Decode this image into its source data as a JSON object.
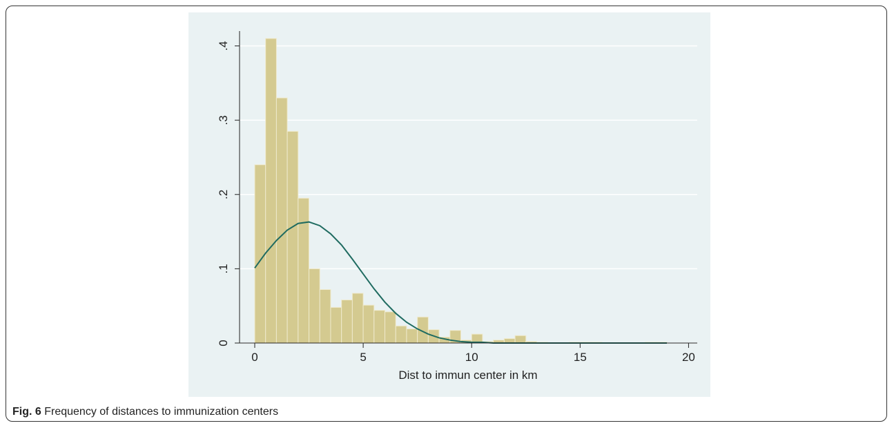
{
  "chart_data": {
    "type": "histogram",
    "x_label": "Dist to immun center in km",
    "bins": [
      0,
      0.5,
      1,
      1.5,
      2,
      2.5,
      3,
      3.5,
      4,
      4.5,
      5,
      5.5,
      6,
      6.5,
      7,
      7.5,
      8,
      8.5,
      9,
      9.5,
      10,
      10.5,
      11,
      11.5,
      12,
      12.5,
      13,
      13.5,
      14,
      14.5,
      15,
      15.5,
      16,
      16.5,
      17,
      17.5,
      18,
      18.5,
      19
    ],
    "values": [
      0.24,
      0.41,
      0.33,
      0.285,
      0.195,
      0.1,
      0.072,
      0.048,
      0.058,
      0.067,
      0.051,
      0.044,
      0.042,
      0.023,
      0.019,
      0.035,
      0.018,
      0.008,
      0.017,
      0.004,
      0.012,
      0.002,
      0.004,
      0.006,
      0.01,
      0.002,
      0.001,
      0.0005,
      0,
      0.001,
      0.001,
      0.001,
      0,
      0,
      0,
      0,
      0.001,
      0.001
    ],
    "color": "#d4ca90",
    "edge_color": "#efeacd",
    "curve": {
      "type": "line",
      "color": "#1f6b60",
      "x": [
        0,
        0.5,
        1,
        1.5,
        2,
        2.5,
        3,
        3.5,
        4,
        4.5,
        5,
        5.5,
        6,
        6.5,
        7,
        7.5,
        8,
        8.5,
        9,
        9.5,
        10,
        10.5,
        11,
        12,
        13,
        14,
        15,
        16,
        17,
        18,
        19
      ],
      "values": [
        0.101,
        0.121,
        0.138,
        0.152,
        0.161,
        0.163,
        0.158,
        0.147,
        0.132,
        0.113,
        0.093,
        0.073,
        0.055,
        0.04,
        0.028,
        0.019,
        0.012,
        0.007,
        0.004,
        0.002,
        0.001,
        0.001,
        0,
        0,
        0,
        0,
        0,
        0,
        0,
        0,
        0
      ]
    },
    "xlim": [
      -0.7,
      20.4
    ],
    "xticks": [
      0,
      5,
      10,
      15,
      20
    ],
    "ylim": [
      0,
      0.42
    ],
    "yticks": [
      0,
      {
        "value": 0.1,
        "label": ".1"
      },
      {
        "value": 0.2,
        "label": ".2"
      },
      {
        "value": 0.3,
        "label": ".3"
      },
      {
        "value": 0.4,
        "label": ".4"
      }
    ],
    "grid": true
  },
  "caption": {
    "label": "Fig. 6",
    "text": "Frequency of distances to immunization centers"
  }
}
